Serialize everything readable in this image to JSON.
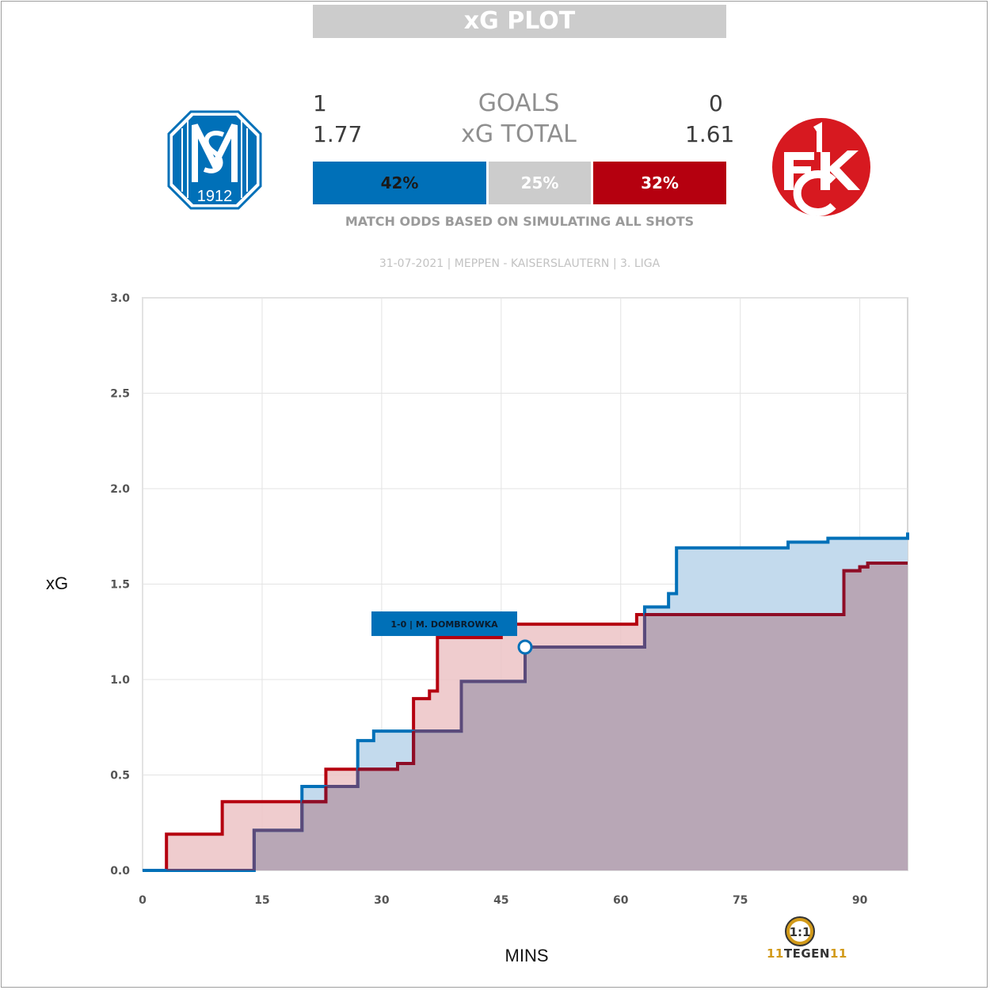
{
  "title": "xG PLOT",
  "home": {
    "goals": "1",
    "xg_total": "1.77",
    "win_prob": "42%",
    "color": "#0070b8",
    "crest_text": "SV",
    "crest_year": "1912"
  },
  "away": {
    "goals": "0",
    "xg_total": "1.61",
    "win_prob": "32%",
    "color": "#b5000f",
    "crest_text": "1FCK"
  },
  "labels": {
    "goals": "GOALS",
    "xg_total": "xG TOTAL",
    "draw_prob": "25%",
    "odds_note": "MATCH ODDS BASED ON SIMULATING ALL SHOTS",
    "match_info": "31-07-2021 | MEPPEN - KAISERSLAUTERN | 3. LIGA",
    "draw_color": "#cccccc"
  },
  "brand": {
    "icon": "11-11-logo-icon",
    "text_left": "11",
    "text_mid": "TEGEN",
    "text_right": "11"
  },
  "chart_data": {
    "type": "line",
    "step": true,
    "xlabel": "MINS",
    "ylabel": "xG",
    "xlim": [
      0,
      96
    ],
    "ylim": [
      0,
      3.0
    ],
    "x_ticks": [
      0,
      15,
      30,
      45,
      60,
      75,
      90
    ],
    "y_ticks": [
      "0.0",
      "0.5",
      "1.0",
      "1.5",
      "2.0",
      "2.5",
      "3.0"
    ],
    "grid": true,
    "series": [
      {
        "team": "home",
        "color": "#0070b8",
        "fill": "#c3daed",
        "points": [
          [
            0,
            0
          ],
          [
            14,
            0
          ],
          [
            14,
            0.21
          ],
          [
            20,
            0.21
          ],
          [
            20,
            0.44
          ],
          [
            27,
            0.44
          ],
          [
            27,
            0.68
          ],
          [
            29,
            0.68
          ],
          [
            29,
            0.73
          ],
          [
            40,
            0.73
          ],
          [
            40,
            0.99
          ],
          [
            48,
            0.99
          ],
          [
            48,
            1.17
          ],
          [
            63,
            1.17
          ],
          [
            63,
            1.38
          ],
          [
            66,
            1.38
          ],
          [
            66,
            1.45
          ],
          [
            67,
            1.45
          ],
          [
            67,
            1.69
          ],
          [
            81,
            1.69
          ],
          [
            81,
            1.72
          ],
          [
            86,
            1.72
          ],
          [
            86,
            1.74
          ],
          [
            96,
            1.74
          ],
          [
            96,
            1.77
          ]
        ]
      },
      {
        "team": "away",
        "color": "#b5000f",
        "fill": "#ecc3c6",
        "points": [
          [
            0,
            0
          ],
          [
            3,
            0
          ],
          [
            3,
            0.19
          ],
          [
            10,
            0.19
          ],
          [
            10,
            0.36
          ],
          [
            23,
            0.36
          ],
          [
            23,
            0.53
          ],
          [
            32,
            0.53
          ],
          [
            32,
            0.56
          ],
          [
            34,
            0.56
          ],
          [
            34,
            0.9
          ],
          [
            36,
            0.9
          ],
          [
            36,
            0.94
          ],
          [
            37,
            0.94
          ],
          [
            37,
            1.22
          ],
          [
            45,
            1.22
          ],
          [
            45,
            1.29
          ],
          [
            62,
            1.29
          ],
          [
            62,
            1.34
          ],
          [
            88,
            1.34
          ],
          [
            88,
            1.57
          ],
          [
            90,
            1.57
          ],
          [
            90,
            1.59
          ],
          [
            91,
            1.59
          ],
          [
            91,
            1.61
          ],
          [
            96,
            1.61
          ]
        ]
      }
    ],
    "overlap_fill": "#b8a7b6",
    "overlap_line": "#5b4a7a",
    "annotations": [
      {
        "label": "1-0 | M. DOMBROWKA",
        "x": 48,
        "y": 1.17,
        "team": "home"
      }
    ]
  }
}
